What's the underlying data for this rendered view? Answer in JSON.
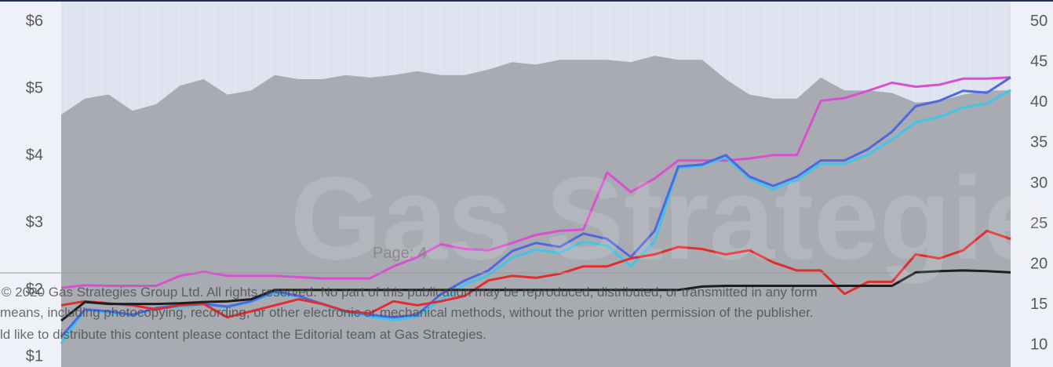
{
  "chart_data": {
    "type": "line",
    "x": [
      0,
      1,
      2,
      3,
      4,
      5,
      6,
      7,
      8,
      9,
      10,
      11,
      12,
      13,
      14,
      15,
      16,
      17,
      18,
      19,
      20,
      21,
      22,
      23,
      24,
      25,
      26,
      27,
      28,
      29,
      30,
      31,
      32,
      33,
      34,
      35,
      36,
      37,
      38,
      39,
      40
    ],
    "xlim": [
      0,
      40
    ],
    "ylim": [
      0.85,
      6.3
    ],
    "yticks": [
      {
        "value": 1,
        "label": "$1"
      },
      {
        "value": 2,
        "label": "$2"
      },
      {
        "value": 3,
        "label": "$3"
      },
      {
        "value": 4,
        "label": "$4"
      },
      {
        "value": 5,
        "label": "$5"
      },
      {
        "value": 6,
        "label": "$6"
      }
    ],
    "y2lim": [
      7.3,
      52.5
    ],
    "y2ticks": [
      10,
      15,
      20,
      25,
      30,
      35,
      40,
      45,
      50
    ],
    "grid": false,
    "series": [
      {
        "color": "#a9abb3",
        "area": true,
        "axis": "y2",
        "values": [
          38.5,
          40.5,
          41.0,
          39.0,
          39.8,
          42.1,
          42.9,
          41.0,
          41.5,
          43.4,
          42.9,
          42.9,
          43.4,
          43.1,
          43.4,
          43.9,
          43.4,
          43.4,
          44.1,
          45.0,
          44.7,
          45.3,
          45.3,
          45.3,
          45.0,
          45.8,
          45.3,
          45.3,
          42.9,
          41.0,
          40.5,
          40.5,
          43.1,
          41.5,
          41.5,
          41.2,
          40.0,
          40.2,
          41.0,
          41.5,
          41.5
        ]
      },
      {
        "color": "#d94fd1",
        "values": [
          2.03,
          2.07,
          2.06,
          2.06,
          2.06,
          2.21,
          2.27,
          2.21,
          2.21,
          2.21,
          2.19,
          2.17,
          2.17,
          2.17,
          2.35,
          2.49,
          2.68,
          2.61,
          2.59,
          2.7,
          2.82,
          2.88,
          2.9,
          3.75,
          3.46,
          3.66,
          3.93,
          3.93,
          3.93,
          3.96,
          4.01,
          4.01,
          4.82,
          4.86,
          4.97,
          5.09,
          5.03,
          5.06,
          5.15,
          5.15,
          5.17
        ]
      },
      {
        "color": "#3fc4ea",
        "values": [
          1.2,
          1.7,
          1.66,
          1.62,
          1.72,
          1.74,
          1.78,
          1.74,
          1.82,
          1.95,
          1.9,
          1.78,
          1.66,
          1.6,
          1.55,
          1.6,
          1.85,
          2.08,
          2.22,
          2.48,
          2.6,
          2.55,
          2.72,
          2.66,
          2.35,
          2.72,
          3.82,
          3.85,
          3.98,
          3.66,
          3.5,
          3.64,
          3.88,
          3.88,
          4.02,
          4.24,
          4.5,
          4.58,
          4.72,
          4.78,
          4.98
        ]
      },
      {
        "color": "#5067e0",
        "values": [
          1.3,
          1.71,
          1.68,
          1.63,
          1.73,
          1.77,
          1.79,
          1.75,
          1.83,
          1.98,
          1.91,
          1.79,
          1.68,
          1.63,
          1.59,
          1.63,
          1.94,
          2.14,
          2.29,
          2.58,
          2.7,
          2.64,
          2.84,
          2.76,
          2.49,
          2.88,
          3.84,
          3.87,
          4.01,
          3.69,
          3.55,
          3.69,
          3.93,
          3.93,
          4.1,
          4.36,
          4.74,
          4.82,
          4.97,
          4.94,
          5.17
        ]
      },
      {
        "color": "#e02d2d",
        "values": [
          1.77,
          1.83,
          1.8,
          1.77,
          1.71,
          1.77,
          1.79,
          1.59,
          1.68,
          1.77,
          1.86,
          1.79,
          1.68,
          1.65,
          1.83,
          1.77,
          1.83,
          1.91,
          2.14,
          2.21,
          2.18,
          2.24,
          2.35,
          2.35,
          2.47,
          2.53,
          2.64,
          2.61,
          2.53,
          2.59,
          2.41,
          2.29,
          2.29,
          1.94,
          2.12,
          2.12,
          2.53,
          2.47,
          2.59,
          2.88,
          2.76
        ]
      },
      {
        "color": "#1e1e1e",
        "values": [
          1.54,
          1.82,
          1.79,
          1.79,
          1.79,
          1.8,
          1.82,
          1.83,
          1.86,
          2.0,
          2.0,
          2.0,
          2.0,
          2.0,
          2.0,
          2.0,
          2.0,
          2.0,
          2.0,
          2.0,
          2.0,
          2.0,
          2.0,
          2.0,
          2.0,
          2.0,
          2.0,
          2.05,
          2.06,
          2.06,
          2.06,
          2.06,
          2.06,
          2.06,
          2.06,
          2.06,
          2.26,
          2.28,
          2.29,
          2.28,
          2.26
        ]
      }
    ]
  },
  "watermark": "Gas Strategies",
  "page_label": "Page: 4",
  "copyright": [
    "© 2020 Gas Strategies Group Ltd. All rights reserved. No part of this publication may be reproduced, distributed, or transmitted in any form",
    "means, including photocopying, recording, or other electronic or mechanical methods, without the prior written permission of the publisher.",
    "ld like to distribute this content please contact the Editorial team at Gas Strategies."
  ]
}
